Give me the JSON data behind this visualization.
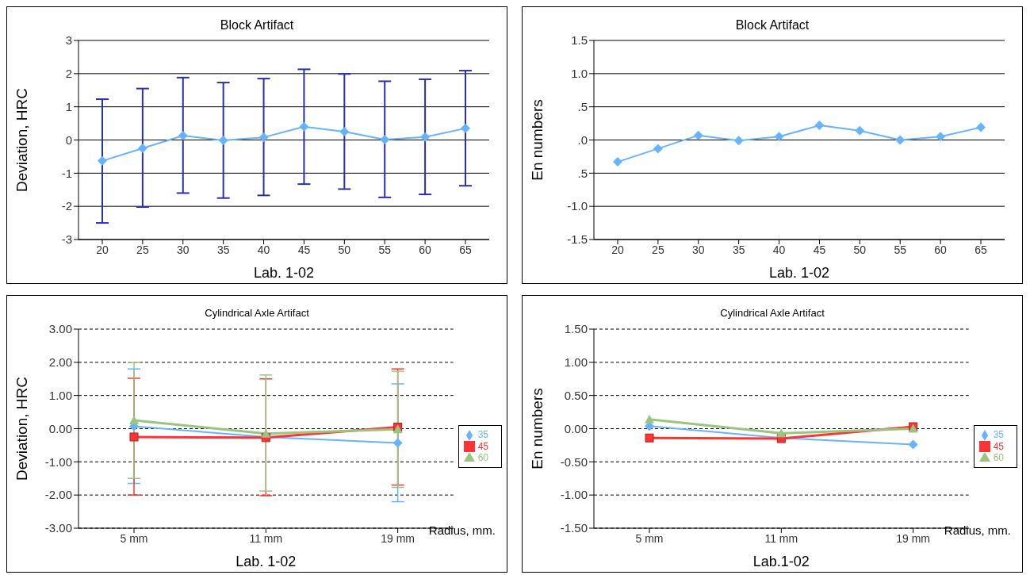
{
  "chart_data": [
    {
      "type": "line",
      "title": "Block Artifact",
      "ylabel": "Deviation, HRC",
      "xlabel": "Lab. 1-02",
      "categories": [
        "20",
        "25",
        "30",
        "35",
        "40",
        "45",
        "50",
        "55",
        "60",
        "65"
      ],
      "values": [
        -0.63,
        -0.25,
        0.13,
        -0.01,
        0.08,
        0.4,
        0.25,
        0.01,
        0.09,
        0.35
      ],
      "errors": [
        [
          -2.5,
          1.23
        ],
        [
          -2.02,
          1.55
        ],
        [
          -1.6,
          1.88
        ],
        [
          -1.75,
          1.73
        ],
        [
          -1.67,
          1.85
        ],
        [
          -1.33,
          2.13
        ],
        [
          -1.48,
          1.99
        ],
        [
          -1.73,
          1.77
        ],
        [
          -1.64,
          1.83
        ],
        [
          -1.38,
          2.09
        ]
      ],
      "color": "#66b3ff",
      "marker": "diamond",
      "ylim": [
        -3,
        3
      ],
      "yticks": [
        -3,
        -2,
        -1,
        0,
        1,
        2,
        3
      ],
      "grid": "y"
    },
    {
      "type": "line",
      "title": "Block Artifact",
      "ylabel": "En numbers",
      "xlabel": "Lab. 1-02",
      "categories": [
        "20",
        "25",
        "30",
        "35",
        "40",
        "45",
        "50",
        "55",
        "60",
        "65"
      ],
      "values": [
        -0.33,
        -0.13,
        0.07,
        -0.01,
        0.05,
        0.22,
        0.14,
        0.0,
        0.05,
        0.19
      ],
      "color": "#66b3ff",
      "marker": "diamond",
      "ylim": [
        -1.5,
        1.5
      ],
      "yticks": [
        {
          "value": -1.5,
          "label": "-1.5"
        },
        {
          "value": -1,
          "label": "-1.0"
        },
        {
          "value": -0.5,
          "label": ".5"
        },
        {
          "value": 0,
          "label": ".0"
        },
        {
          "value": 0.5,
          "label": ".5"
        },
        {
          "value": 1,
          "label": "1.0"
        },
        {
          "value": 1.5,
          "label": "1.5"
        }
      ],
      "grid": "y"
    },
    {
      "type": "line",
      "title": "Cylindrical Axle  Artifact",
      "ylabel": "Deviation, HRC",
      "xlabel": "Lab. 1-02",
      "annotations": [
        "Radius, mm."
      ],
      "categories": [
        "5 mm",
        "11 mm",
        "19 mm"
      ],
      "series": [
        {
          "name": "35",
          "color": "#66b3ff",
          "marker": "diamond",
          "values": [
            0.07,
            -0.25,
            -0.43
          ],
          "errors": [
            [
              -1.65,
              1.8
            ],
            null,
            [
              -2.2,
              1.35
            ]
          ]
        },
        {
          "name": "45",
          "color": "#ff3333",
          "marker": "square",
          "values": [
            -0.25,
            -0.27,
            0.05
          ],
          "errors": [
            [
              -2.0,
              1.52
            ],
            [
              -2.02,
              1.5
            ],
            [
              -1.7,
              1.8
            ]
          ]
        },
        {
          "name": "60",
          "color": "#99c57f",
          "marker": "triangle",
          "values": [
            0.25,
            -0.15,
            -0.02
          ],
          "errors": [
            [
              -1.5,
              2.0
            ],
            [
              -1.88,
              1.62
            ],
            1.75
          ]
        }
      ],
      "ylim": [
        -3,
        3
      ],
      "yticks": [
        {
          "value": -3,
          "label": "-3.00"
        },
        {
          "value": -2,
          "label": "-2.00"
        },
        {
          "value": -1,
          "label": "-1.00"
        },
        {
          "value": 0,
          "label": "0.00"
        },
        {
          "value": 1,
          "label": "1.00"
        },
        {
          "value": 2,
          "label": "2.00"
        },
        {
          "value": 3,
          "label": "3.00"
        }
      ],
      "grid": "y",
      "legend": "right"
    },
    {
      "type": "line",
      "title": "Cylindrical Axle  Artifact",
      "ylabel": "En numbers",
      "xlabel": "Lab.1-02",
      "annotations": [
        "Radius, mm."
      ],
      "categories": [
        "5 mm",
        "11 mm",
        "19 mm"
      ],
      "series": [
        {
          "name": "35",
          "color": "#66b3ff",
          "marker": "diamond",
          "values": [
            0.04,
            -0.14,
            -0.24
          ]
        },
        {
          "name": "45",
          "color": "#ff3333",
          "marker": "square",
          "values": [
            -0.14,
            -0.15,
            0.03
          ]
        },
        {
          "name": "60",
          "color": "#99c57f",
          "marker": "triangle",
          "values": [
            0.14,
            -0.07,
            0.0
          ]
        }
      ],
      "ylim": [
        -1.5,
        1.5
      ],
      "yticks": [
        {
          "value": -1.5,
          "label": "-1.50"
        },
        {
          "value": -1,
          "label": "-1.00"
        },
        {
          "value": -0.5,
          "label": "-0.50"
        },
        {
          "value": 0,
          "label": "0.00"
        },
        {
          "value": 0.5,
          "label": "0.50"
        },
        {
          "value": 1,
          "label": "1.00"
        },
        {
          "value": 1.5,
          "label": "1.50"
        }
      ],
      "grid": "y",
      "legend": "right"
    }
  ]
}
